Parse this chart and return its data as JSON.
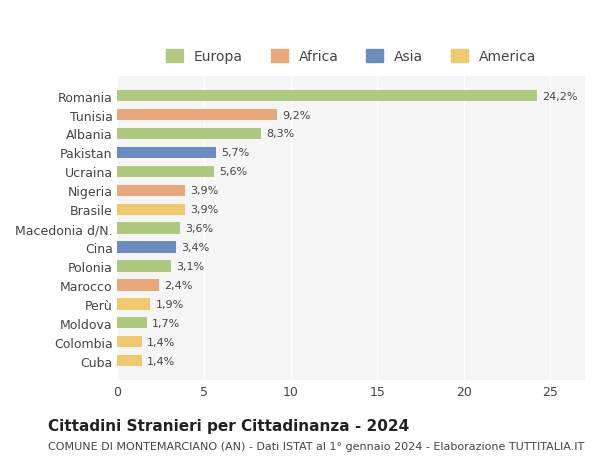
{
  "categories": [
    "Romania",
    "Tunisia",
    "Albania",
    "Pakistan",
    "Ucraina",
    "Nigeria",
    "Brasile",
    "Macedonia d/N.",
    "Cina",
    "Polonia",
    "Marocco",
    "Perù",
    "Moldova",
    "Colombia",
    "Cuba"
  ],
  "values": [
    24.2,
    9.2,
    8.3,
    5.7,
    5.6,
    3.9,
    3.9,
    3.6,
    3.4,
    3.1,
    2.4,
    1.9,
    1.7,
    1.4,
    1.4
  ],
  "labels": [
    "24,2%",
    "9,2%",
    "8,3%",
    "5,7%",
    "5,6%",
    "3,9%",
    "3,9%",
    "3,6%",
    "3,4%",
    "3,1%",
    "2,4%",
    "1,9%",
    "1,7%",
    "1,4%",
    "1,4%"
  ],
  "continents": [
    "Europa",
    "Africa",
    "Europa",
    "Asia",
    "Europa",
    "Africa",
    "America",
    "Europa",
    "Asia",
    "Europa",
    "Africa",
    "America",
    "Europa",
    "America",
    "America"
  ],
  "continent_colors": {
    "Europa": "#afc97e",
    "Africa": "#e8a87c",
    "Asia": "#6b8cbf",
    "America": "#f0c96e"
  },
  "legend_order": [
    "Europa",
    "Africa",
    "Asia",
    "America"
  ],
  "title": "Cittadini Stranieri per Cittadinanza - 2024",
  "subtitle": "COMUNE DI MONTEMARCIANO (AN) - Dati ISTAT al 1° gennaio 2024 - Elaborazione TUTTITALIA.IT",
  "xlim": [
    0,
    27
  ],
  "xticks": [
    0,
    5,
    10,
    15,
    20,
    25
  ],
  "background_color": "#ffffff",
  "plot_bg_color": "#f5f5f5",
  "grid_color": "#ffffff",
  "bar_height": 0.6,
  "title_fontsize": 11,
  "subtitle_fontsize": 8,
  "label_fontsize": 8,
  "tick_fontsize": 9,
  "legend_fontsize": 10
}
